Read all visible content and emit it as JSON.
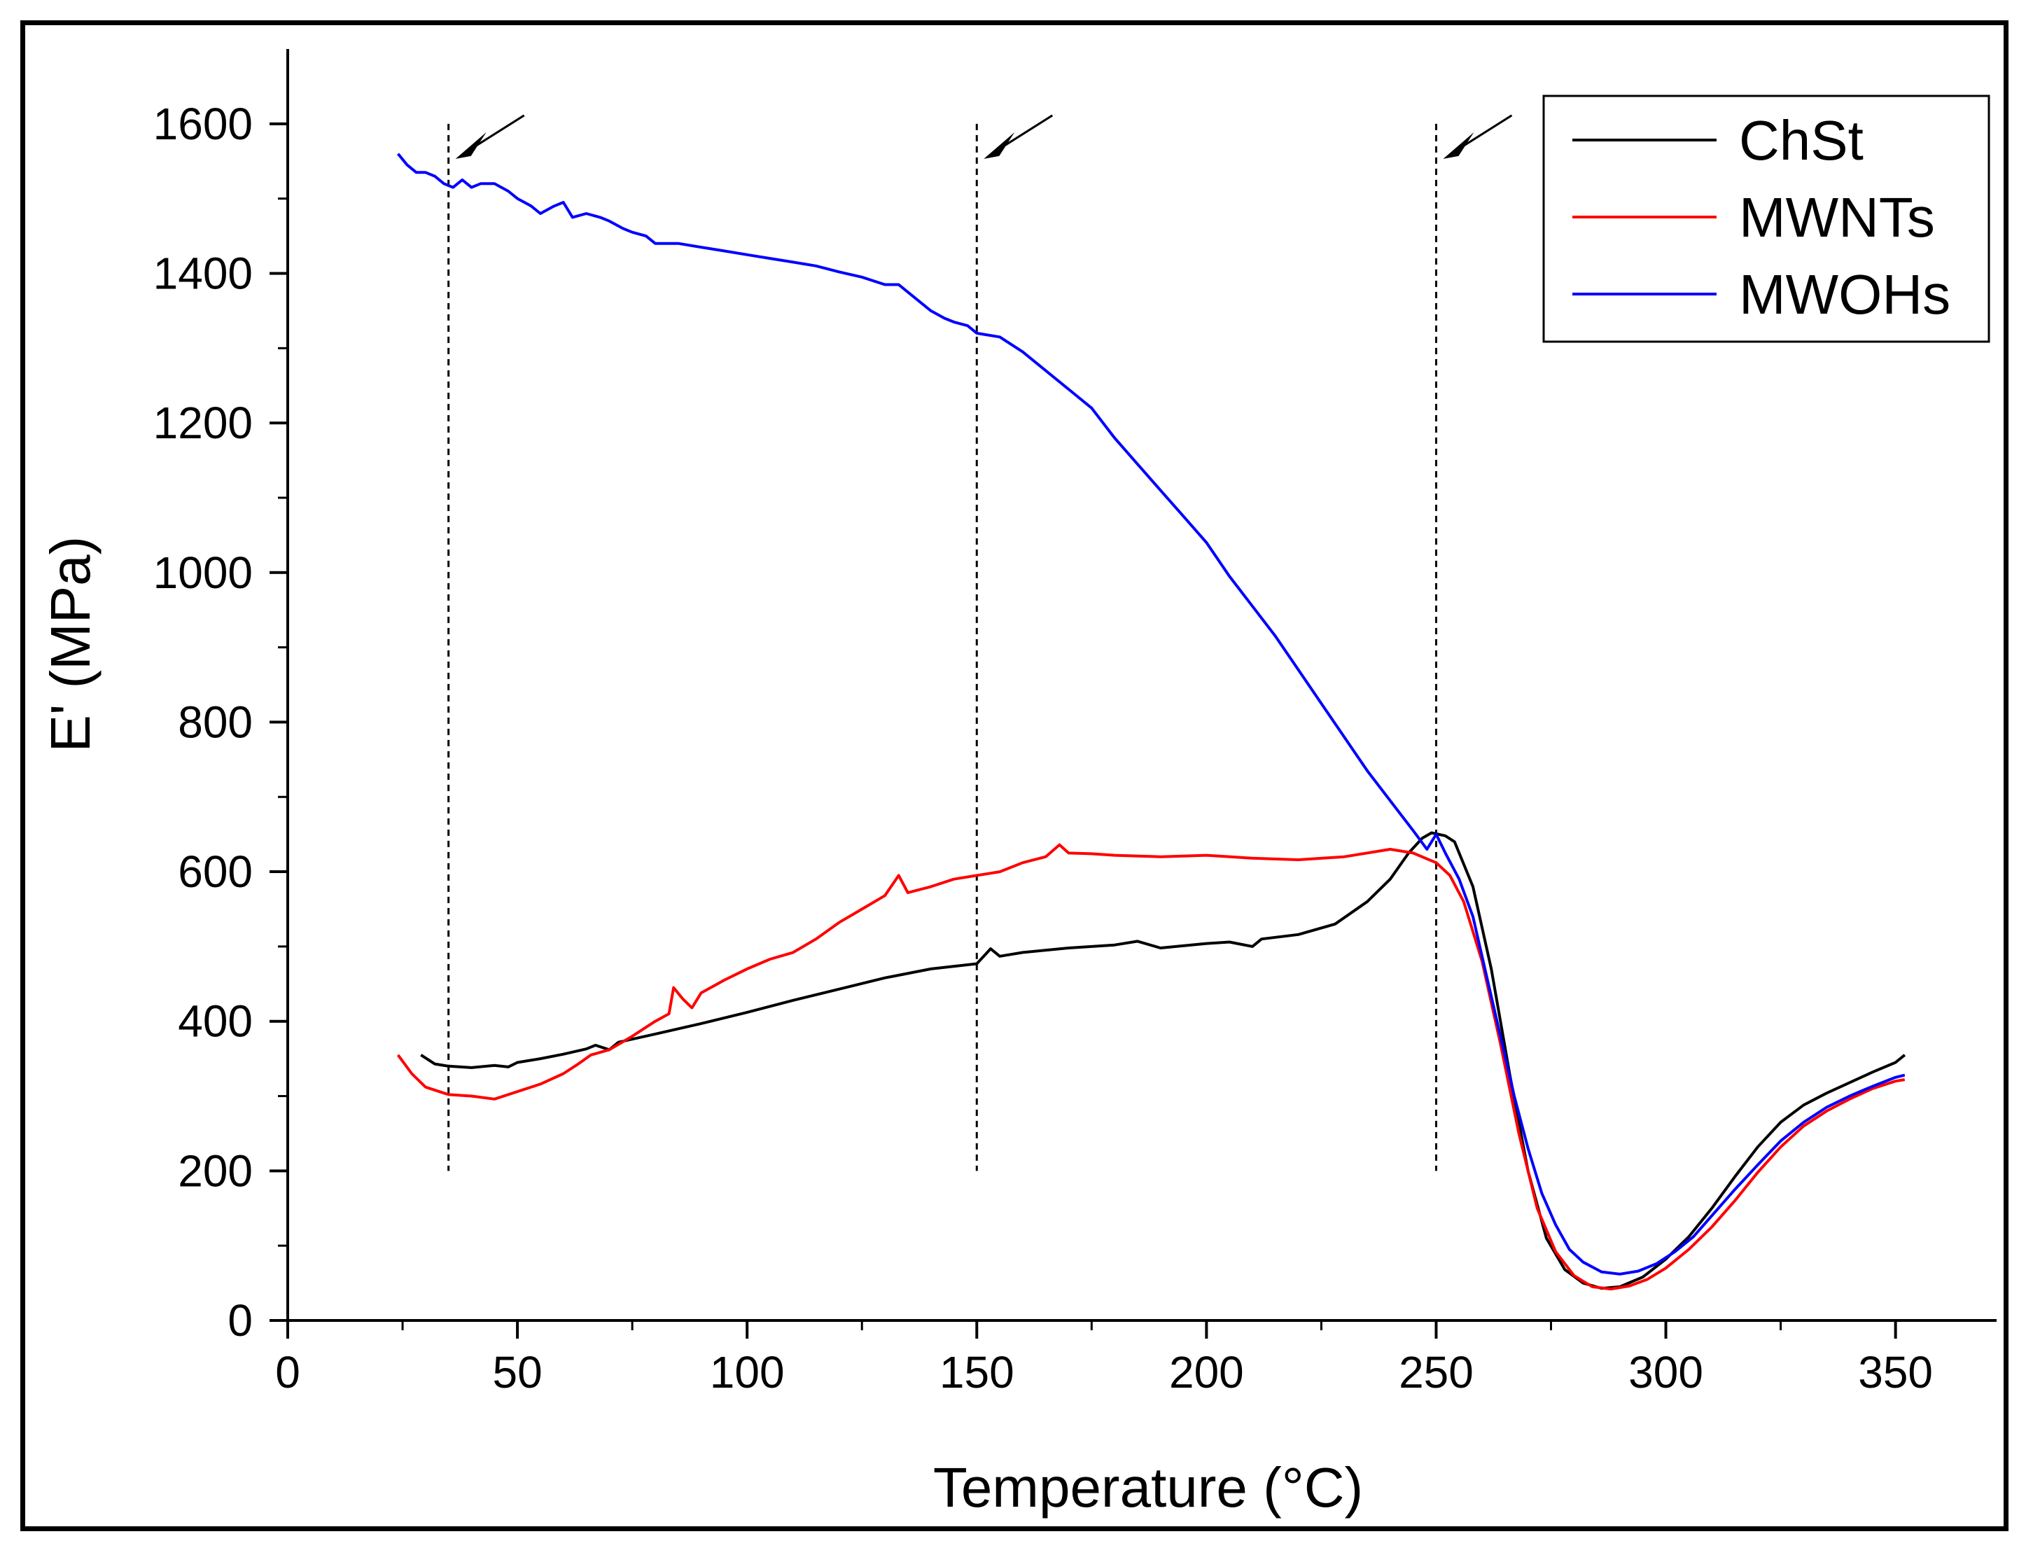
{
  "chart_data": {
    "type": "line",
    "title": "",
    "xlabel": "Temperature (°C)",
    "ylabel": "E' (MPa)",
    "xlim": [
      0,
      372
    ],
    "ylim": [
      0,
      1700
    ],
    "xticks": [
      0,
      50,
      100,
      150,
      200,
      250,
      300,
      350
    ],
    "yticks": [
      0,
      200,
      400,
      600,
      800,
      1000,
      1200,
      1400,
      1600
    ],
    "legend_position": "top-right",
    "reference_lines": [
      {
        "x": 35,
        "y_from": 200,
        "y_to": 1600,
        "arrow": true,
        "style": "dashed"
      },
      {
        "x": 150,
        "y_from": 200,
        "y_to": 1600,
        "arrow": true,
        "style": "dashed"
      },
      {
        "x": 250,
        "y_from": 200,
        "y_to": 1600,
        "arrow": true,
        "style": "dashed"
      }
    ],
    "series": [
      {
        "name": "ChSt",
        "color": "#000000",
        "points": [
          [
            29,
            355
          ],
          [
            32,
            343
          ],
          [
            35,
            340
          ],
          [
            40,
            338
          ],
          [
            45,
            341
          ],
          [
            48,
            339
          ],
          [
            50,
            345
          ],
          [
            55,
            350
          ],
          [
            60,
            356
          ],
          [
            65,
            363
          ],
          [
            67,
            368
          ],
          [
            70,
            362
          ],
          [
            72,
            372
          ],
          [
            80,
            383
          ],
          [
            90,
            397
          ],
          [
            100,
            412
          ],
          [
            110,
            428
          ],
          [
            120,
            443
          ],
          [
            130,
            458
          ],
          [
            140,
            470
          ],
          [
            150,
            477
          ],
          [
            153,
            497
          ],
          [
            155,
            487
          ],
          [
            160,
            492
          ],
          [
            170,
            498
          ],
          [
            180,
            502
          ],
          [
            185,
            507
          ],
          [
            190,
            498
          ],
          [
            200,
            504
          ],
          [
            205,
            506
          ],
          [
            210,
            500
          ],
          [
            212,
            510
          ],
          [
            220,
            516
          ],
          [
            228,
            530
          ],
          [
            235,
            560
          ],
          [
            240,
            590
          ],
          [
            244,
            625
          ],
          [
            247,
            645
          ],
          [
            249,
            652
          ],
          [
            252,
            648
          ],
          [
            254,
            640
          ],
          [
            258,
            580
          ],
          [
            262,
            470
          ],
          [
            266,
            330
          ],
          [
            270,
            200
          ],
          [
            274,
            110
          ],
          [
            278,
            68
          ],
          [
            282,
            50
          ],
          [
            286,
            43
          ],
          [
            290,
            45
          ],
          [
            295,
            58
          ],
          [
            300,
            82
          ],
          [
            305,
            112
          ],
          [
            310,
            150
          ],
          [
            315,
            192
          ],
          [
            320,
            232
          ],
          [
            325,
            265
          ],
          [
            330,
            288
          ],
          [
            335,
            304
          ],
          [
            340,
            318
          ],
          [
            345,
            332
          ],
          [
            350,
            345
          ],
          [
            352,
            355
          ]
        ]
      },
      {
        "name": "MWNTs",
        "color": "#ff0000",
        "points": [
          [
            24,
            355
          ],
          [
            27,
            330
          ],
          [
            30,
            312
          ],
          [
            35,
            302
          ],
          [
            40,
            300
          ],
          [
            45,
            296
          ],
          [
            48,
            302
          ],
          [
            52,
            310
          ],
          [
            55,
            316
          ],
          [
            60,
            330
          ],
          [
            63,
            342
          ],
          [
            66,
            355
          ],
          [
            70,
            362
          ],
          [
            75,
            380
          ],
          [
            80,
            400
          ],
          [
            83,
            410
          ],
          [
            84,
            445
          ],
          [
            86,
            430
          ],
          [
            88,
            418
          ],
          [
            90,
            438
          ],
          [
            95,
            455
          ],
          [
            100,
            470
          ],
          [
            105,
            483
          ],
          [
            110,
            492
          ],
          [
            115,
            510
          ],
          [
            120,
            532
          ],
          [
            125,
            550
          ],
          [
            130,
            568
          ],
          [
            133,
            595
          ],
          [
            135,
            572
          ],
          [
            140,
            580
          ],
          [
            145,
            590
          ],
          [
            150,
            595
          ],
          [
            155,
            600
          ],
          [
            160,
            612
          ],
          [
            165,
            620
          ],
          [
            168,
            636
          ],
          [
            170,
            625
          ],
          [
            175,
            624
          ],
          [
            180,
            622
          ],
          [
            190,
            620
          ],
          [
            200,
            622
          ],
          [
            210,
            618
          ],
          [
            220,
            616
          ],
          [
            230,
            620
          ],
          [
            240,
            630
          ],
          [
            245,
            625
          ],
          [
            250,
            612
          ],
          [
            253,
            595
          ],
          [
            256,
            560
          ],
          [
            260,
            480
          ],
          [
            264,
            370
          ],
          [
            268,
            250
          ],
          [
            272,
            150
          ],
          [
            276,
            92
          ],
          [
            280,
            60
          ],
          [
            284,
            45
          ],
          [
            288,
            42
          ],
          [
            292,
            46
          ],
          [
            296,
            55
          ],
          [
            300,
            70
          ],
          [
            305,
            95
          ],
          [
            310,
            125
          ],
          [
            315,
            160
          ],
          [
            320,
            198
          ],
          [
            325,
            232
          ],
          [
            330,
            260
          ],
          [
            335,
            280
          ],
          [
            340,
            296
          ],
          [
            345,
            310
          ],
          [
            350,
            320
          ],
          [
            352,
            322
          ]
        ]
      },
      {
        "name": "MWOHs",
        "color": "#0000ff",
        "points": [
          [
            24,
            1560
          ],
          [
            26,
            1545
          ],
          [
            28,
            1535
          ],
          [
            30,
            1535
          ],
          [
            32,
            1530
          ],
          [
            34,
            1520
          ],
          [
            36,
            1515
          ],
          [
            38,
            1525
          ],
          [
            40,
            1515
          ],
          [
            42,
            1520
          ],
          [
            45,
            1520
          ],
          [
            48,
            1510
          ],
          [
            50,
            1500
          ],
          [
            53,
            1490
          ],
          [
            55,
            1480
          ],
          [
            58,
            1490
          ],
          [
            60,
            1495
          ],
          [
            62,
            1475
          ],
          [
            65,
            1480
          ],
          [
            68,
            1475
          ],
          [
            70,
            1470
          ],
          [
            73,
            1460
          ],
          [
            75,
            1455
          ],
          [
            78,
            1450
          ],
          [
            80,
            1440
          ],
          [
            85,
            1440
          ],
          [
            90,
            1435
          ],
          [
            95,
            1430
          ],
          [
            100,
            1425
          ],
          [
            105,
            1420
          ],
          [
            110,
            1415
          ],
          [
            115,
            1410
          ],
          [
            120,
            1402
          ],
          [
            125,
            1395
          ],
          [
            130,
            1385
          ],
          [
            133,
            1385
          ],
          [
            135,
            1375
          ],
          [
            140,
            1350
          ],
          [
            143,
            1340
          ],
          [
            145,
            1335
          ],
          [
            148,
            1330
          ],
          [
            150,
            1320
          ],
          [
            155,
            1315
          ],
          [
            160,
            1295
          ],
          [
            165,
            1270
          ],
          [
            170,
            1245
          ],
          [
            175,
            1220
          ],
          [
            180,
            1180
          ],
          [
            185,
            1145
          ],
          [
            190,
            1110
          ],
          [
            195,
            1075
          ],
          [
            200,
            1040
          ],
          [
            205,
            995
          ],
          [
            210,
            955
          ],
          [
            215,
            915
          ],
          [
            220,
            870
          ],
          [
            225,
            825
          ],
          [
            230,
            780
          ],
          [
            235,
            735
          ],
          [
            240,
            695
          ],
          [
            245,
            655
          ],
          [
            248,
            630
          ],
          [
            250,
            650
          ],
          [
            252,
            625
          ],
          [
            255,
            590
          ],
          [
            258,
            540
          ],
          [
            261,
            460
          ],
          [
            264,
            380
          ],
          [
            267,
            300
          ],
          [
            270,
            230
          ],
          [
            273,
            170
          ],
          [
            276,
            128
          ],
          [
            279,
            95
          ],
          [
            282,
            78
          ],
          [
            286,
            65
          ],
          [
            290,
            62
          ],
          [
            294,
            66
          ],
          [
            298,
            76
          ],
          [
            302,
            92
          ],
          [
            306,
            112
          ],
          [
            310,
            140
          ],
          [
            315,
            175
          ],
          [
            320,
            208
          ],
          [
            325,
            240
          ],
          [
            330,
            265
          ],
          [
            335,
            285
          ],
          [
            340,
            300
          ],
          [
            345,
            313
          ],
          [
            350,
            325
          ],
          [
            352,
            328
          ]
        ]
      }
    ]
  }
}
